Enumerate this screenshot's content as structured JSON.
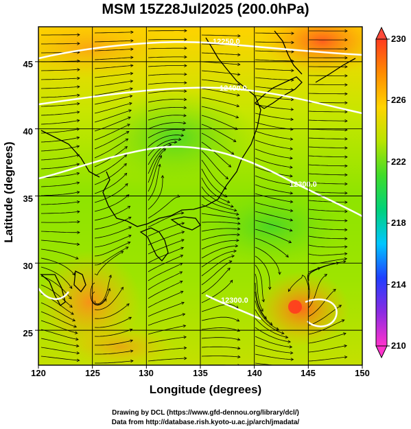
{
  "title": "MSM 15Z28Jul2025 (200.0hPa)",
  "xlabel": "Longitude (degrees)",
  "ylabel": "Latitude  (degrees)",
  "x_ticks": [
    "120",
    "125",
    "130",
    "135",
    "140",
    "145",
    "150"
  ],
  "y_ticks": [
    "25",
    "30",
    "35",
    "40",
    "45"
  ],
  "colorbar_ticks": [
    "230",
    "226",
    "222",
    "218",
    "214",
    "210"
  ],
  "credits": {
    "line1": "Drawing by DCL (https://www.gfd-dennou.org/library/dcl/)",
    "line2": "Data from http://database.rish.kyoto-u.ac.jp/arch/jmadata/"
  },
  "map_data": {
    "lon_range": [
      120,
      150
    ],
    "lat_range": [
      22.4,
      47.6
    ],
    "colorbar_range": [
      210,
      230
    ],
    "colorbar_colors": [
      "#ff33cc",
      "#8a2be2",
      "#1f3fff",
      "#00c6ff",
      "#00d27a",
      "#3fdc2a",
      "#b8e400",
      "#ffd400",
      "#ff8c00",
      "#ff3b1f"
    ],
    "contour_labels": [
      "12250.0",
      "12400.0",
      "12300.0",
      "12300.0"
    ],
    "field_colors": {
      "high": "#ff7a1a",
      "mid": "#ffc400",
      "low": "#8ee400",
      "lowest": "#4fd62a"
    }
  }
}
